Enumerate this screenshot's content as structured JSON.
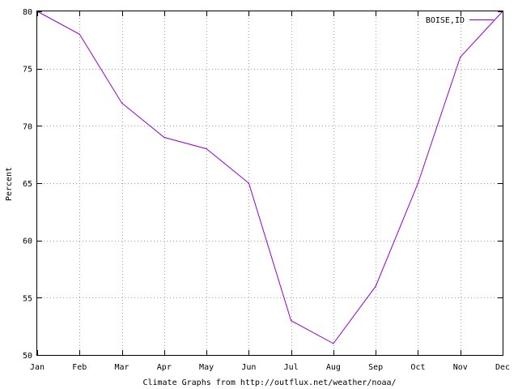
{
  "chart_data": {
    "type": "line",
    "categories": [
      "Jan",
      "Feb",
      "Mar",
      "Apr",
      "May",
      "Jun",
      "Jul",
      "Aug",
      "Sep",
      "Oct",
      "Nov",
      "Dec"
    ],
    "series": [
      {
        "name": "BOISE,ID",
        "color": "#9400d3",
        "values": [
          80,
          78,
          72,
          69,
          68,
          65,
          53,
          51,
          56,
          65,
          76,
          80
        ]
      }
    ],
    "xlabel": "Climate Graphs from http://outflux.net/weather/noaa/",
    "ylabel": "Percent",
    "ylim": [
      50,
      80
    ],
    "yticks": [
      50,
      55,
      60,
      65,
      70,
      75,
      80
    ],
    "grid": true,
    "legend_position": "top-right"
  }
}
